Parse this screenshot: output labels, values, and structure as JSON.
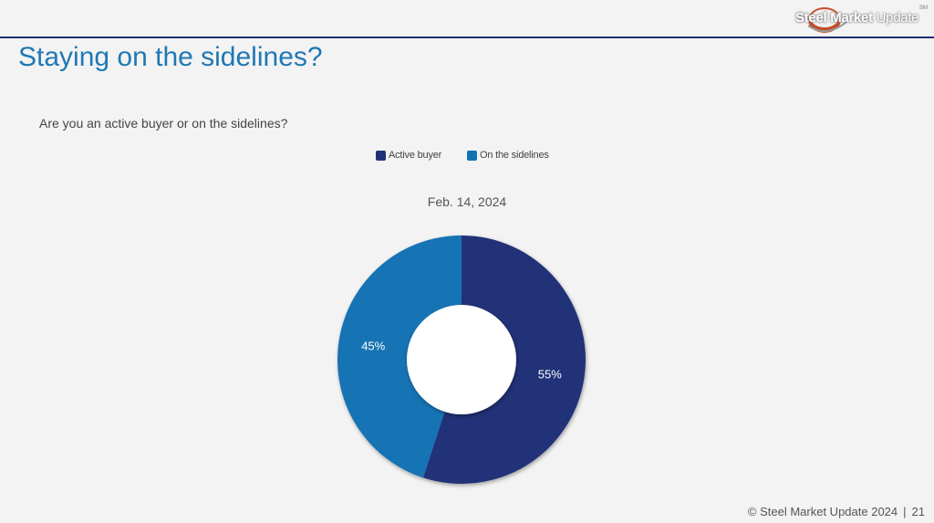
{
  "slide": {
    "title": "Staying on the sidelines?",
    "question": "Are you an active buyer or on the sidelines?"
  },
  "logo": {
    "part1": "Steel Market",
    "part2": " Update",
    "mark": "SM"
  },
  "footer": {
    "copyright": "© Steel Market Update 2024",
    "page_number": "21"
  },
  "colors": {
    "title": "#1f78b4",
    "rule": "#1f2f6e",
    "active_buyer": "#213378",
    "on_the_sidelines": "#1273b4"
  },
  "chart_data": {
    "type": "pie",
    "donut": true,
    "title": "Feb. 14, 2024",
    "legend_position": "top",
    "categories": [
      "Active buyer",
      "On the sidelines"
    ],
    "values": [
      55,
      45
    ],
    "data_labels": [
      "55%",
      "45%"
    ],
    "colors": [
      "#213378",
      "#1273b4"
    ],
    "start_angle_deg": 0,
    "direction": "clockwise"
  }
}
